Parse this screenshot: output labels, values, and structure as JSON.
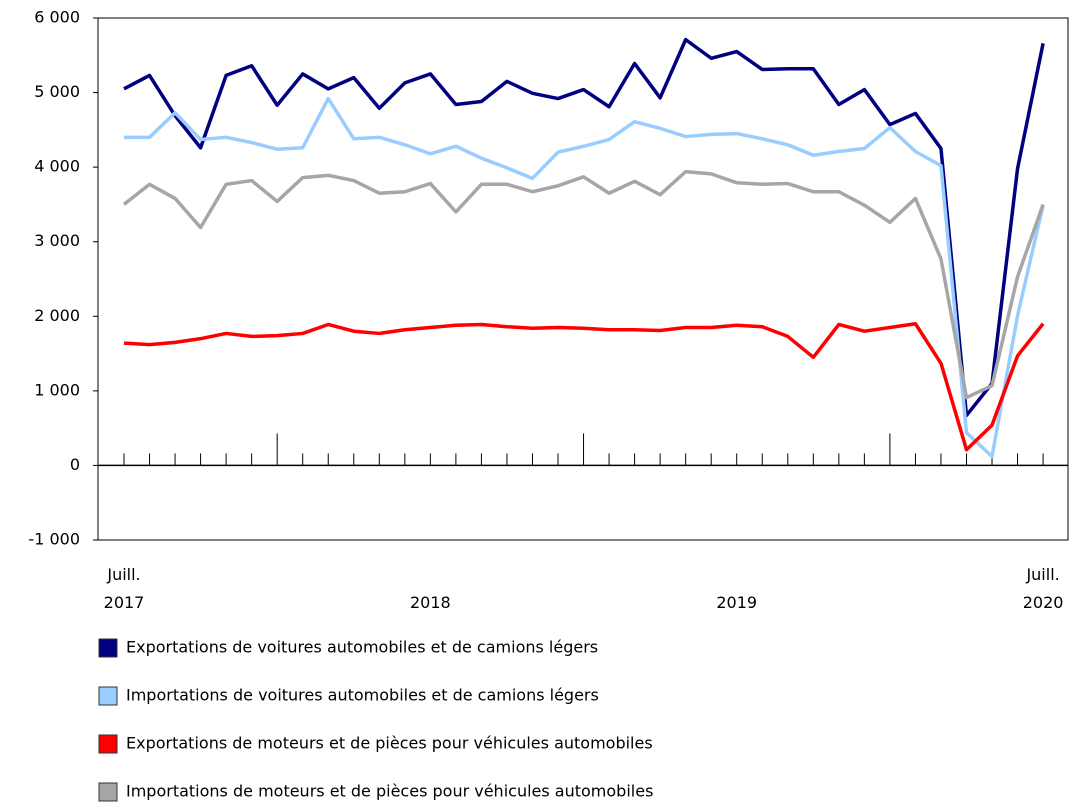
{
  "chart_data": {
    "type": "line",
    "categories": [
      [
        "Juill.",
        "2017"
      ],
      null,
      null,
      null,
      null,
      null,
      null,
      null,
      null,
      null,
      null,
      null,
      [
        "2018"
      ],
      null,
      null,
      null,
      null,
      null,
      null,
      null,
      null,
      null,
      null,
      null,
      [
        "2019"
      ],
      null,
      null,
      null,
      null,
      null,
      null,
      null,
      null,
      null,
      null,
      null,
      [
        "Juill.",
        "2020"
      ]
    ],
    "series": [
      {
        "name": "Exportations de voitures automobiles et de camions légers",
        "color": "#000080",
        "values": [
          5050,
          5230,
          4690,
          4260,
          5230,
          5360,
          4830,
          5250,
          5050,
          5200,
          4790,
          5130,
          5250,
          4840,
          4880,
          5150,
          4990,
          4920,
          5040,
          4810,
          5390,
          4930,
          5710,
          5460,
          5550,
          5310,
          5320,
          5320,
          4840,
          5040,
          4570,
          4720,
          4250,
          670,
          1100,
          3980,
          5660
        ]
      },
      {
        "name": "Importations de voitures automobiles et de camions légers",
        "color": "#99ccff",
        "values": [
          4400,
          4400,
          4730,
          4370,
          4400,
          4330,
          4240,
          4260,
          4920,
          4380,
          4400,
          4300,
          4180,
          4280,
          4120,
          3990,
          3850,
          4200,
          4280,
          4370,
          4610,
          4520,
          4410,
          4440,
          4450,
          4380,
          4300,
          4160,
          4210,
          4250,
          4530,
          4210,
          4020,
          440,
          120,
          2010,
          3490
        ]
      },
      {
        "name": "Exportations de moteurs et de pièces pour véhicules automobiles",
        "color": "#ff0000",
        "values": [
          1640,
          1620,
          1650,
          1700,
          1770,
          1730,
          1740,
          1770,
          1890,
          1800,
          1770,
          1820,
          1850,
          1880,
          1890,
          1860,
          1840,
          1850,
          1840,
          1820,
          1820,
          1810,
          1850,
          1850,
          1880,
          1860,
          1730,
          1450,
          1890,
          1800,
          1850,
          1900,
          1370,
          210,
          540,
          1470,
          1900
        ]
      },
      {
        "name": "Importations de moteurs et de pièces pour véhicules automobiles",
        "color": "#a6a6a6",
        "values": [
          3500,
          3770,
          3580,
          3190,
          3770,
          3820,
          3540,
          3860,
          3890,
          3820,
          3650,
          3670,
          3780,
          3400,
          3770,
          3770,
          3670,
          3750,
          3870,
          3650,
          3810,
          3630,
          3940,
          3910,
          3790,
          3770,
          3780,
          3670,
          3670,
          3490,
          3260,
          3580,
          2770,
          910,
          1070,
          2530,
          3500
        ]
      }
    ],
    "ylim": [
      -1000,
      6000
    ],
    "yticks": [
      {
        "value": -1000,
        "label": "-1 000"
      },
      0,
      {
        "value": 1000,
        "label": "1 000"
      },
      {
        "value": 2000,
        "label": "2 000"
      },
      {
        "value": 3000,
        "label": "3 000"
      },
      {
        "value": 4000,
        "label": "4 000"
      },
      {
        "value": 5000,
        "label": "5 000"
      },
      {
        "value": 6000,
        "label": "6 000"
      }
    ],
    "grid": false,
    "legend": "bottom"
  }
}
